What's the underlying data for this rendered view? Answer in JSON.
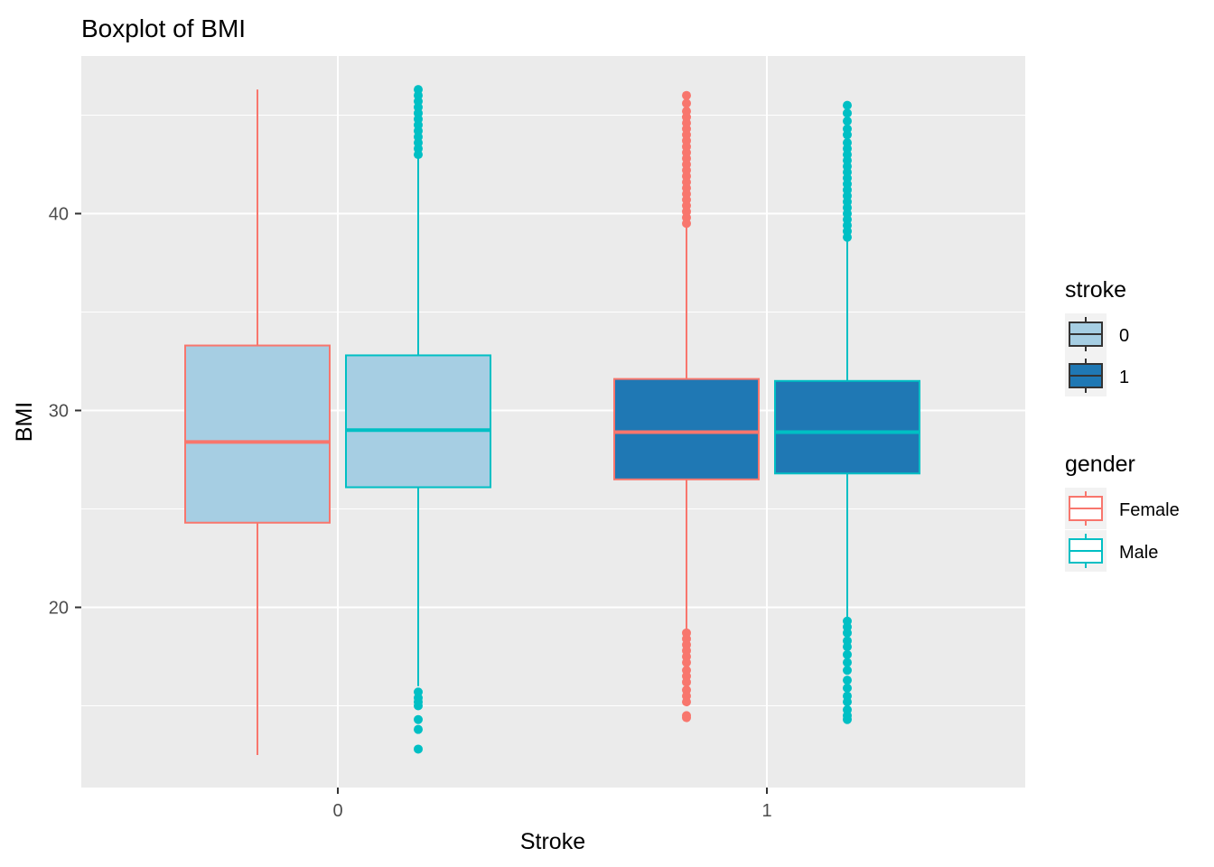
{
  "chart_data": {
    "type": "boxplot",
    "title": "Boxplot of BMI",
    "xlabel": "Stroke",
    "ylabel": "BMI",
    "categories": [
      "0",
      "1"
    ],
    "y_ticks": [
      20,
      30,
      40
    ],
    "ylim": [
      11.4,
      48.5
    ],
    "grid": true,
    "panel_background": "#ebebeb",
    "legend_position": "right",
    "fill_legend": {
      "title": "stroke",
      "entries": [
        {
          "label": "0",
          "color": "#a6cee3"
        },
        {
          "label": "1",
          "color": "#1f78b4"
        }
      ]
    },
    "color_legend": {
      "title": "gender",
      "entries": [
        {
          "label": "Female",
          "color": "#f8766d"
        },
        {
          "label": "Male",
          "color": "#00bfc4"
        }
      ]
    },
    "boxes": [
      {
        "stroke": "0",
        "gender": "Female",
        "min": 12.5,
        "q1": 24.3,
        "median": 28.4,
        "q3": 33.3,
        "max": 46.3,
        "outliers": []
      },
      {
        "stroke": "0",
        "gender": "Male",
        "min": 16.0,
        "q1": 26.1,
        "median": 29.0,
        "q3": 32.8,
        "max": 42.8,
        "outliers": [
          43.0,
          43.3,
          43.6,
          43.9,
          44.2,
          44.5,
          44.8,
          45.1,
          45.4,
          45.7,
          46.0,
          46.3,
          15.7,
          15.4,
          15.2,
          15.0,
          14.3,
          13.8,
          12.8
        ]
      },
      {
        "stroke": "1",
        "gender": "Female",
        "min": 18.9,
        "q1": 26.5,
        "median": 28.9,
        "q3": 31.6,
        "max": 39.3,
        "outliers": [
          39.5,
          39.8,
          40.1,
          40.4,
          40.7,
          41.0,
          41.3,
          41.6,
          41.9,
          42.2,
          42.5,
          42.8,
          43.1,
          43.4,
          43.7,
          44.0,
          44.3,
          44.6,
          44.9,
          45.2,
          45.6,
          46.0,
          18.7,
          18.4,
          18.1,
          17.8,
          17.5,
          17.2,
          16.8,
          16.5,
          16.2,
          15.8,
          15.5,
          15.2,
          14.5,
          14.4
        ]
      },
      {
        "stroke": "1",
        "gender": "Male",
        "min": 19.5,
        "q1": 26.8,
        "median": 28.9,
        "q3": 31.5,
        "max": 38.6,
        "outliers": [
          38.8,
          39.1,
          39.4,
          39.7,
          40.0,
          40.3,
          40.6,
          40.9,
          41.2,
          41.5,
          41.8,
          42.1,
          42.4,
          42.7,
          43.0,
          43.3,
          43.6,
          44.0,
          44.3,
          44.7,
          45.1,
          45.5,
          19.3,
          19.0,
          18.7,
          18.3,
          18.0,
          17.6,
          17.2,
          16.8,
          16.3,
          15.9,
          15.5,
          15.2,
          14.8,
          14.5,
          14.3
        ]
      }
    ]
  }
}
